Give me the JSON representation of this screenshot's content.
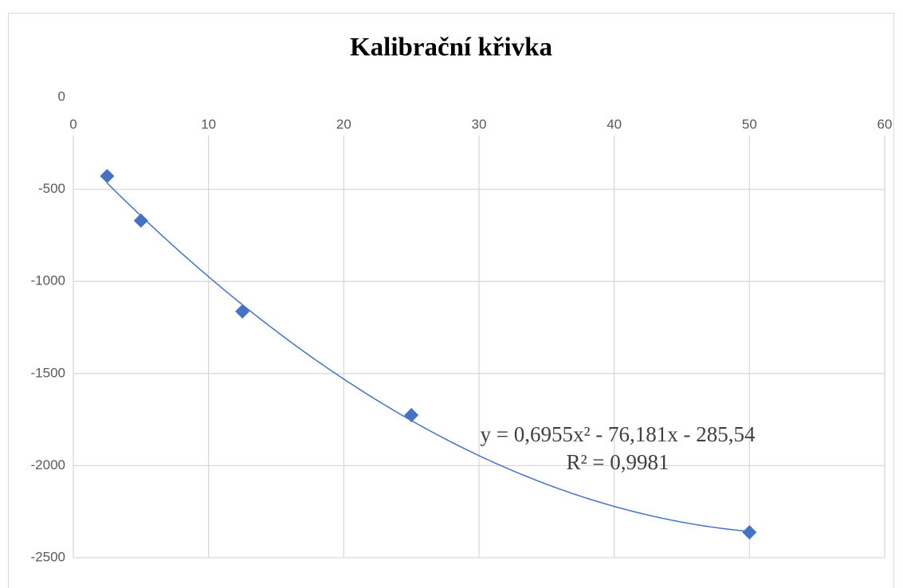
{
  "chart_data": {
    "type": "scatter",
    "title": "Kalibrační křivka",
    "x": [
      2.5,
      5,
      12.5,
      25,
      50
    ],
    "values": [
      -428,
      -670,
      -1163,
      -1726,
      -2362
    ],
    "color": "#4472c4",
    "xlim": [
      0,
      60
    ],
    "xticks": [
      0,
      10,
      20,
      30,
      40,
      50,
      60
    ],
    "ylim": [
      -2500,
      0
    ],
    "yticks": [
      0,
      -500,
      -1000,
      -1500,
      -2000,
      -2500
    ],
    "grid": true,
    "trendline": {
      "type": "polynomial",
      "order": 2,
      "color": "#4472c4",
      "equation": "y = 0,6955x² - 76,181x - 285,54",
      "r_squared": "R² = 0,9981"
    }
  }
}
